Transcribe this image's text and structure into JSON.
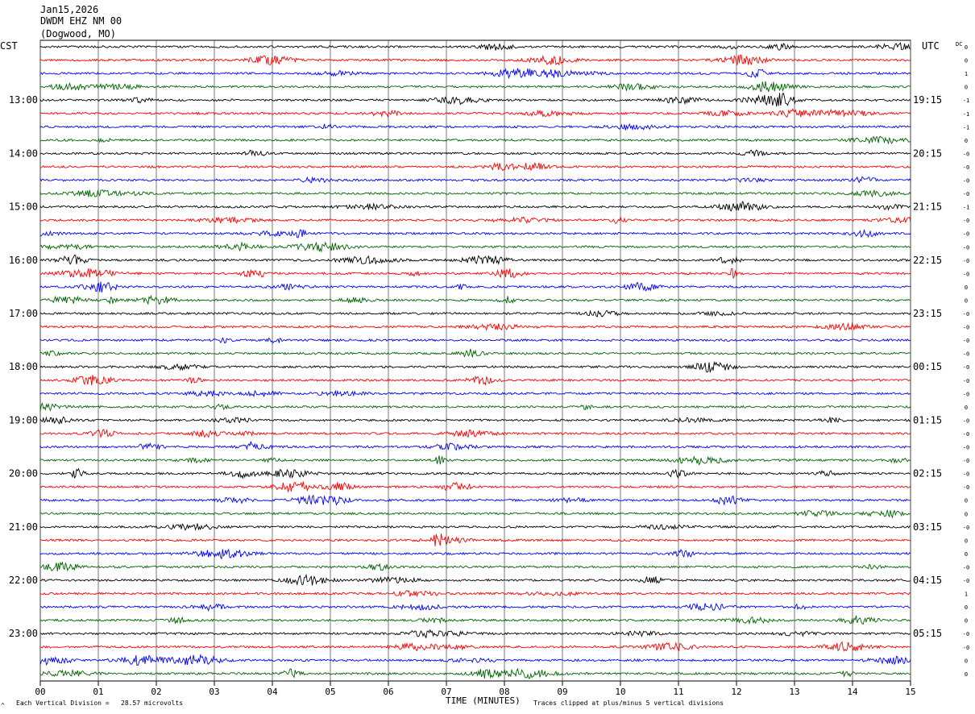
{
  "header": {
    "date": "Jan15,2026",
    "station": "DWDM EHZ NM 00",
    "location": "(Dogwood, MO)"
  },
  "tz_left": "CST",
  "tz_right": "UTC",
  "dc_label": "DC",
  "footer": {
    "scale_note": "Each Vertical Division =   28.57 microvolts",
    "xlabel": "TIME (MINUTES)",
    "clip_note": "Traces clipped at plus/minus 5 vertical divisions",
    "corner_mark": "^"
  },
  "colors": {
    "cycle": [
      "#000000",
      "#ff0000",
      "#0000ff",
      "#006400"
    ],
    "grid": "#555555"
  },
  "chart_data": {
    "type": "line",
    "title": "",
    "xlabel": "TIME (MINUTES)",
    "ylabel": "",
    "xlim": [
      0,
      15
    ],
    "x_ticks": [
      "00",
      "01",
      "02",
      "03",
      "04",
      "05",
      "06",
      "07",
      "08",
      "09",
      "10",
      "11",
      "12",
      "13",
      "14",
      "15"
    ],
    "trace_minutes": 15,
    "traces_per_hour": 4,
    "trace_count": 48,
    "left_hour_labels": [
      "13:00",
      "14:00",
      "15:00",
      "16:00",
      "17:00",
      "18:00",
      "19:00",
      "20:00",
      "21:00",
      "22:00",
      "23:00"
    ],
    "right_hour_labels": [
      "19:15",
      "20:15",
      "21:15",
      "22:15",
      "23:15",
      "00:15",
      "01:15",
      "02:15",
      "03:15",
      "04:15",
      "05:15"
    ],
    "trace_dc_offsets": [
      "0",
      "0",
      "1",
      "0",
      "-1",
      "-1",
      "-1",
      "0",
      "-0",
      "-0",
      "-0",
      "-0",
      "-1",
      "-0",
      "-0",
      "-0",
      "-0",
      "-0",
      "0",
      "0",
      "-0",
      "-0",
      "-0",
      "-0",
      "-0",
      "-0",
      "-0",
      "0",
      "-0",
      "-0",
      "-0",
      "-0",
      "-0",
      "-0",
      "0",
      "0",
      "-0",
      "0",
      "0",
      "-0",
      "-0",
      "1",
      "0",
      "0",
      "-0",
      "-0",
      "0",
      "0"
    ],
    "series": [
      {
        "name": "Black traces",
        "color": "#000000"
      },
      {
        "name": "Red traces",
        "color": "#ff0000"
      },
      {
        "name": "Blue traces",
        "color": "#0000ff"
      },
      {
        "name": "Green traces",
        "color": "#006400"
      }
    ],
    "grid": true,
    "vertical_division_microvolts": 28.57,
    "clip_divisions": 5
  }
}
